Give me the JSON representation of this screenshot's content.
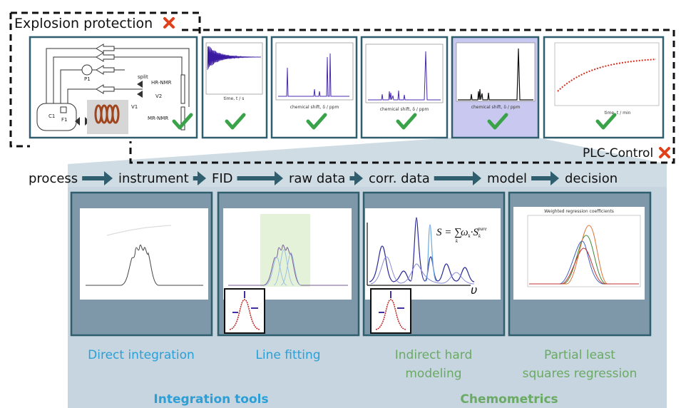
{
  "explosion_protection": {
    "label": "Explosion protection"
  },
  "plc_control": {
    "label": "PLC-Control"
  },
  "process_diagram": {
    "labels": [
      "C1",
      "F1",
      "P1",
      "split",
      "V1",
      "V2",
      "HR-NMR",
      "MR-NMR"
    ]
  },
  "plot_axes": {
    "fid": "time, t / s",
    "spectrum_1": "chemical shift, δ / ppm",
    "spectrum_2": "chemical shift, δ / ppm",
    "spectrum_3": "chemical shift, δ / ppm",
    "kinetics": "time, t / min"
  },
  "workflow": [
    "process",
    "instrument",
    "FID",
    "raw data",
    "corr. data",
    "model",
    "decision"
  ],
  "formula": {
    "lhs": "S = ∑",
    "index": "k",
    "weight": "ω",
    "weight_index": "k",
    "dot": "·S",
    "pure_index": "k",
    "pure": "pure"
  },
  "ihm_axis": "υ",
  "pls_plot_title": "Weighted regression coefficients",
  "methods": [
    {
      "lines": [
        "Direct integration"
      ]
    },
    {
      "lines": [
        "Line fitting"
      ]
    },
    {
      "lines": [
        "Indirect hard",
        "modeling"
      ]
    },
    {
      "lines": [
        "Partial least",
        "squares regression"
      ]
    }
  ],
  "groups": [
    "Integration tools",
    "Chemometrics"
  ]
}
